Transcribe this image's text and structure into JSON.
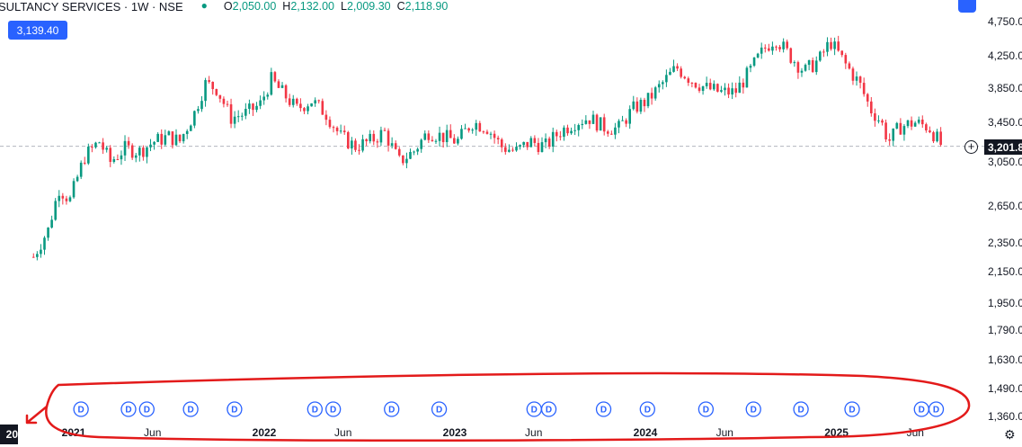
{
  "header": {
    "title": "SULTANCY SERVICES · 1W · NSE",
    "o_label": "O",
    "o_value": "2,050.00",
    "h_label": "H",
    "h_value": "2,132.00",
    "l_label": "L",
    "l_value": "2,009.30",
    "c_label": "C",
    "c_value": "2,118.90"
  },
  "crosshair_price_badge": "3,139.40",
  "last_price_tag": "3,201.8",
  "corner_label": "20",
  "colors": {
    "up": "#089981",
    "down": "#f23645",
    "accent": "#2962ff",
    "annotation": "#e31a1a"
  },
  "icons": {
    "settings": "settings-icon",
    "plus": "plus-icon",
    "gear": "gear-icon"
  },
  "chart_data": {
    "type": "candlestick",
    "title": "",
    "xlabel": "",
    "ylabel": "",
    "y_scale": "log",
    "ylim": [
      1300,
      5000
    ],
    "y_ticks": [
      1360,
      1490,
      1630,
      1790,
      1950,
      2150,
      2350,
      2650,
      3050,
      3450,
      3850,
      4250,
      4750
    ],
    "y_tick_labels": [
      "1,360.00",
      "1,490.00",
      "1,630.00",
      "1,790.00",
      "1,950.00",
      "2,150.00",
      "2,350.00",
      "2,650.00",
      "3,050.00",
      "3,450.00",
      "3,850.00",
      "4,250.00",
      "4,750.00"
    ],
    "x_tick_labels": [
      {
        "label": "2021",
        "bold": true,
        "date": "2021-01-01"
      },
      {
        "label": "Jun",
        "bold": false,
        "date": "2021-06-01"
      },
      {
        "label": "2022",
        "bold": true,
        "date": "2022-01-01"
      },
      {
        "label": "Jun",
        "bold": false,
        "date": "2022-06-01"
      },
      {
        "label": "2023",
        "bold": true,
        "date": "2023-01-01"
      },
      {
        "label": "Jun",
        "bold": false,
        "date": "2023-06-01"
      },
      {
        "label": "2024",
        "bold": true,
        "date": "2024-01-01"
      },
      {
        "label": "Jun",
        "bold": false,
        "date": "2024-06-01"
      },
      {
        "label": "2025",
        "bold": true,
        "date": "2025-01-01"
      },
      {
        "label": "Jun",
        "bold": false,
        "date": "2025-06-01"
      }
    ],
    "price_path": [
      [
        "2020-10-16",
        2250
      ],
      [
        "2020-11-13",
        2450
      ],
      [
        "2020-12-04",
        2800
      ],
      [
        "2020-12-25",
        2700
      ],
      [
        "2021-01-22",
        3100
      ],
      [
        "2021-02-19",
        3250
      ],
      [
        "2021-03-12",
        3050
      ],
      [
        "2021-04-09",
        3180
      ],
      [
        "2021-05-07",
        3150
      ],
      [
        "2021-06-04",
        3250
      ],
      [
        "2021-07-02",
        3300
      ],
      [
        "2021-07-23",
        3250
      ],
      [
        "2021-08-20",
        3550
      ],
      [
        "2021-09-10",
        3900
      ],
      [
        "2021-10-01",
        3850
      ],
      [
        "2021-10-29",
        3500
      ],
      [
        "2021-11-26",
        3550
      ],
      [
        "2021-12-24",
        3650
      ],
      [
        "2022-01-14",
        3950
      ],
      [
        "2022-02-04",
        3800
      ],
      [
        "2022-03-04",
        3600
      ],
      [
        "2022-04-01",
        3700
      ],
      [
        "2022-04-29",
        3550
      ],
      [
        "2022-05-27",
        3300
      ],
      [
        "2022-06-24",
        3200
      ],
      [
        "2022-07-22",
        3250
      ],
      [
        "2022-08-19",
        3350
      ],
      [
        "2022-09-16",
        3050
      ],
      [
        "2022-10-14",
        3150
      ],
      [
        "2022-11-11",
        3350
      ],
      [
        "2022-12-09",
        3300
      ],
      [
        "2023-01-06",
        3250
      ],
      [
        "2023-02-03",
        3450
      ],
      [
        "2023-03-03",
        3400
      ],
      [
        "2023-03-31",
        3200
      ],
      [
        "2023-04-28",
        3150
      ],
      [
        "2023-05-26",
        3250
      ],
      [
        "2023-06-23",
        3200
      ],
      [
        "2023-07-21",
        3350
      ],
      [
        "2023-08-18",
        3450
      ],
      [
        "2023-09-15",
        3500
      ],
      [
        "2023-10-13",
        3400
      ],
      [
        "2023-11-10",
        3380
      ],
      [
        "2023-12-08",
        3600
      ],
      [
        "2024-01-05",
        3700
      ],
      [
        "2024-02-02",
        3900
      ],
      [
        "2024-03-01",
        4100
      ],
      [
        "2024-03-29",
        3950
      ],
      [
        "2024-04-26",
        3850
      ],
      [
        "2024-05-24",
        3800
      ],
      [
        "2024-06-21",
        3800
      ],
      [
        "2024-07-19",
        4050
      ],
      [
        "2024-08-16",
        4350
      ],
      [
        "2024-09-06",
        4500
      ],
      [
        "2024-10-04",
        4250
      ],
      [
        "2024-11-01",
        4050
      ],
      [
        "2024-11-29",
        4200
      ],
      [
        "2024-12-20",
        4450
      ],
      [
        "2025-01-17",
        4150
      ],
      [
        "2025-02-14",
        3900
      ],
      [
        "2025-03-07",
        3600
      ],
      [
        "2025-03-28",
        3450
      ],
      [
        "2025-04-11",
        3250
      ],
      [
        "2025-05-02",
        3400
      ],
      [
        "2025-05-30",
        3450
      ],
      [
        "2025-06-27",
        3400
      ],
      [
        "2025-07-25",
        3180
      ]
    ],
    "dividend_markers": [
      {
        "label": "D",
        "date": "2021-01-15"
      },
      {
        "label": "D",
        "date": "2021-04-16"
      },
      {
        "label": "D",
        "date": "2021-05-21"
      },
      {
        "label": "D",
        "date": "2021-08-13"
      },
      {
        "label": "D",
        "date": "2021-11-05"
      },
      {
        "label": "D",
        "date": "2022-04-08"
      },
      {
        "label": "D",
        "date": "2022-05-13"
      },
      {
        "label": "D",
        "date": "2022-09-02"
      },
      {
        "label": "D",
        "date": "2022-12-02"
      },
      {
        "label": "D",
        "date": "2023-06-02"
      },
      {
        "label": "D",
        "date": "2023-06-30"
      },
      {
        "label": "D",
        "date": "2023-10-13"
      },
      {
        "label": "D",
        "date": "2024-01-05"
      },
      {
        "label": "D",
        "date": "2024-04-26"
      },
      {
        "label": "D",
        "date": "2024-07-26"
      },
      {
        "label": "D",
        "date": "2024-10-25"
      },
      {
        "label": "D",
        "date": "2025-01-31"
      },
      {
        "label": "D",
        "date": "2025-06-13"
      },
      {
        "label": "D",
        "date": "2025-07-11"
      }
    ],
    "last_price": 3201.8,
    "grid": false,
    "legend": "none"
  }
}
